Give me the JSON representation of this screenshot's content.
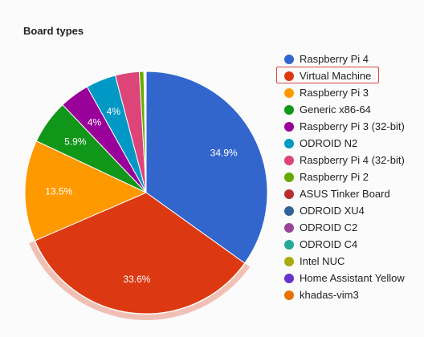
{
  "chart_data": {
    "type": "pie",
    "title": "Board types",
    "slices": [
      {
        "name": "Raspberry Pi 4",
        "value": 34.9,
        "label": "34.9%",
        "color": "#3366cc"
      },
      {
        "name": "Virtual Machine",
        "value": 33.6,
        "label": "33.6%",
        "color": "#dc3912"
      },
      {
        "name": "Raspberry Pi 3",
        "value": 13.5,
        "label": "13.5%",
        "color": "#ff9900"
      },
      {
        "name": "Generic x86-64",
        "value": 5.9,
        "label": "5.9%",
        "color": "#109618"
      },
      {
        "name": "Raspberry Pi 3 (32-bit)",
        "value": 4.0,
        "label": "4%",
        "color": "#990099"
      },
      {
        "name": "ODROID N2",
        "value": 4.0,
        "label": "4%",
        "color": "#0099c6"
      },
      {
        "name": "Raspberry Pi 4 (32-bit)",
        "value": 3.2,
        "label": "",
        "color": "#dd4477"
      },
      {
        "name": "Raspberry Pi 2",
        "value": 0.6,
        "label": "",
        "color": "#66aa00"
      },
      {
        "name": "ASUS Tinker Board",
        "value": 0.1,
        "label": "",
        "color": "#b82e2e"
      },
      {
        "name": "ODROID XU4",
        "value": 0.05,
        "label": "",
        "color": "#316395"
      },
      {
        "name": "ODROID C2",
        "value": 0.05,
        "label": "",
        "color": "#994499"
      },
      {
        "name": "ODROID C4",
        "value": 0.03,
        "label": "",
        "color": "#22aa99"
      },
      {
        "name": "Intel NUC",
        "value": 0.03,
        "label": "",
        "color": "#aaaa11"
      },
      {
        "name": "Home Assistant Yellow",
        "value": 0.02,
        "label": "",
        "color": "#6633cc"
      },
      {
        "name": "khadas-vim3",
        "value": 0.02,
        "label": "",
        "color": "#e67300"
      }
    ],
    "highlighted": "Virtual Machine",
    "legend_position": "right"
  }
}
